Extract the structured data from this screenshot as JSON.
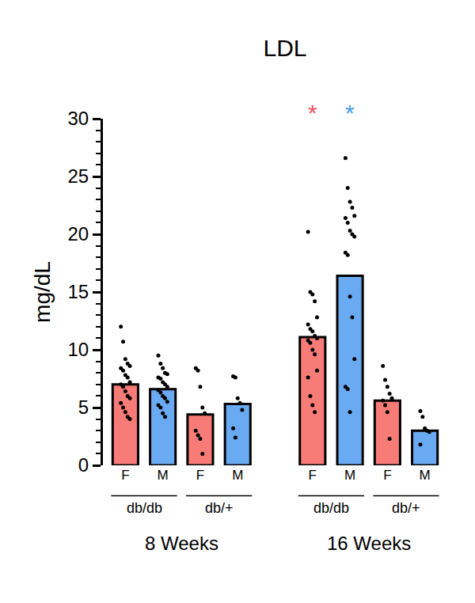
{
  "chart_data": {
    "type": "bar",
    "title": "LDL",
    "y_label": "mg/dL",
    "categories": [
      "F",
      "M",
      "F",
      "M",
      null,
      "F",
      "M",
      "F",
      "M"
    ],
    "values": [
      7.0,
      6.6,
      4.4,
      5.3,
      null,
      11.1,
      16.4,
      5.6,
      3.0
    ],
    "colors": [
      "#f77b76",
      "#6aaaf2",
      "#f77b76",
      "#6aaaf2",
      null,
      "#f77b76",
      "#6aaaf2",
      "#f77b76",
      "#6aaaf2"
    ],
    "points": [
      [
        12.0,
        10.7,
        9.2,
        8.8,
        8.6,
        8.4,
        8.2,
        7.8,
        7.6,
        7.2,
        7.0,
        6.8,
        6.4,
        6.0,
        5.8,
        5.4,
        5.0,
        4.6,
        4.2,
        4.0
      ],
      [
        9.5,
        8.8,
        8.4,
        8.0,
        7.9,
        7.6,
        7.5,
        7.2,
        7.0,
        6.8,
        6.5,
        6.3,
        6.0,
        5.8,
        5.5,
        5.2,
        5.0,
        4.5,
        4.2
      ],
      [
        8.4,
        8.2,
        6.8,
        5.0,
        4.5,
        3.0,
        2.6,
        2.3,
        1.0
      ],
      [
        7.7,
        7.6,
        5.8,
        5.4,
        4.8,
        3.2,
        2.4
      ],
      null,
      [
        20.2,
        15.0,
        14.8,
        14.2,
        12.8,
        12.2,
        11.8,
        11.6,
        11.2,
        11.0,
        10.8,
        10.6,
        10.0,
        9.6,
        8.2,
        7.6,
        6.0,
        5.2,
        4.6
      ],
      [
        26.6,
        24.0,
        22.8,
        22.3,
        21.6,
        21.4,
        21.0,
        20.3,
        20.0,
        19.8,
        18.4,
        18.2,
        14.6,
        12.8,
        9.2,
        6.8,
        6.6,
        4.6
      ],
      [
        8.6,
        7.4,
        6.8,
        6.2,
        5.8,
        5.6,
        5.2,
        4.6,
        2.3
      ],
      [
        4.7,
        4.2,
        3.2,
        3.0,
        2.9,
        1.8
      ]
    ],
    "groups": [
      {
        "label": "db/db",
        "from": 0,
        "to": 1
      },
      {
        "label": "db/+",
        "from": 2,
        "to": 3
      },
      {
        "label": "db/db",
        "from": 5,
        "to": 6
      },
      {
        "label": "db/+",
        "from": 7,
        "to": 8
      }
    ],
    "time_groups": [
      {
        "label": "8 Weeks",
        "from": 0,
        "to": 3
      },
      {
        "label": "16 Weeks",
        "from": 5,
        "to": 8
      }
    ],
    "annotations": [
      {
        "text": "*",
        "category": 5,
        "color": "#f2545b"
      },
      {
        "text": "*",
        "category": 6,
        "color": "#3f9ae8"
      }
    ],
    "ylim": [
      0,
      30
    ],
    "yticks": [
      0,
      5,
      10,
      15,
      20,
      25,
      30
    ],
    "grid": false
  }
}
